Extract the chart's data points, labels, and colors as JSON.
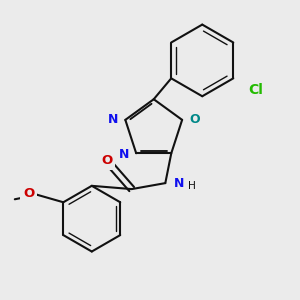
{
  "bg": "#ebebeb",
  "bond_color": "#111111",
  "lw": 1.5,
  "lw_inner": 1.0,
  "colors": {
    "N": "#1010ee",
    "O_ring": "#008888",
    "O_carbonyl": "#cc0000",
    "O_methoxy": "#cc0000",
    "Cl": "#22bb00"
  },
  "fs": 9.0,
  "fig_w": 3.0,
  "fig_h": 3.0,
  "dpi": 100,
  "xlim": [
    -0.5,
    3.5
  ],
  "ylim": [
    -0.5,
    3.5
  ]
}
